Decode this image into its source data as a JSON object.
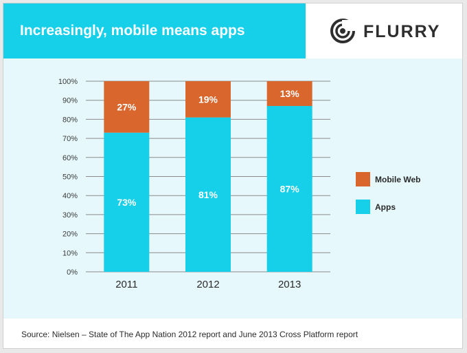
{
  "header": {
    "title": "Increasingly, mobile means apps",
    "logo_text": "FLURRY",
    "logo_icon": "flurry-logo-icon"
  },
  "colors": {
    "header": "#16cfe8",
    "apps": "#16cfe8",
    "mobile_web": "#d9662d",
    "plot_background": "#e6f8fb"
  },
  "chart_data": {
    "type": "bar",
    "stacked": true,
    "categories": [
      "2011",
      "2012",
      "2013"
    ],
    "series": [
      {
        "name": "Apps",
        "values": [
          73,
          81,
          87
        ],
        "labels": [
          "73%",
          "81%",
          "87%"
        ],
        "color": "#16cfe8"
      },
      {
        "name": "Mobile Web",
        "values": [
          27,
          19,
          13
        ],
        "labels": [
          "27%",
          "19%",
          "13%"
        ],
        "color": "#d9662d"
      }
    ],
    "ylim": [
      0,
      100
    ],
    "yticks": [
      "0%",
      "10%",
      "20%",
      "30%",
      "40%",
      "50%",
      "60%",
      "70%",
      "80%",
      "90%",
      "100%"
    ],
    "grid": true,
    "legend": {
      "position": "right",
      "entries": [
        "Mobile Web",
        "Apps"
      ]
    },
    "title": "",
    "xlabel": "",
    "ylabel": ""
  },
  "footer": {
    "source": "Source: Nielsen – State of The App Nation 2012 report and June 2013 Cross Platform report"
  }
}
